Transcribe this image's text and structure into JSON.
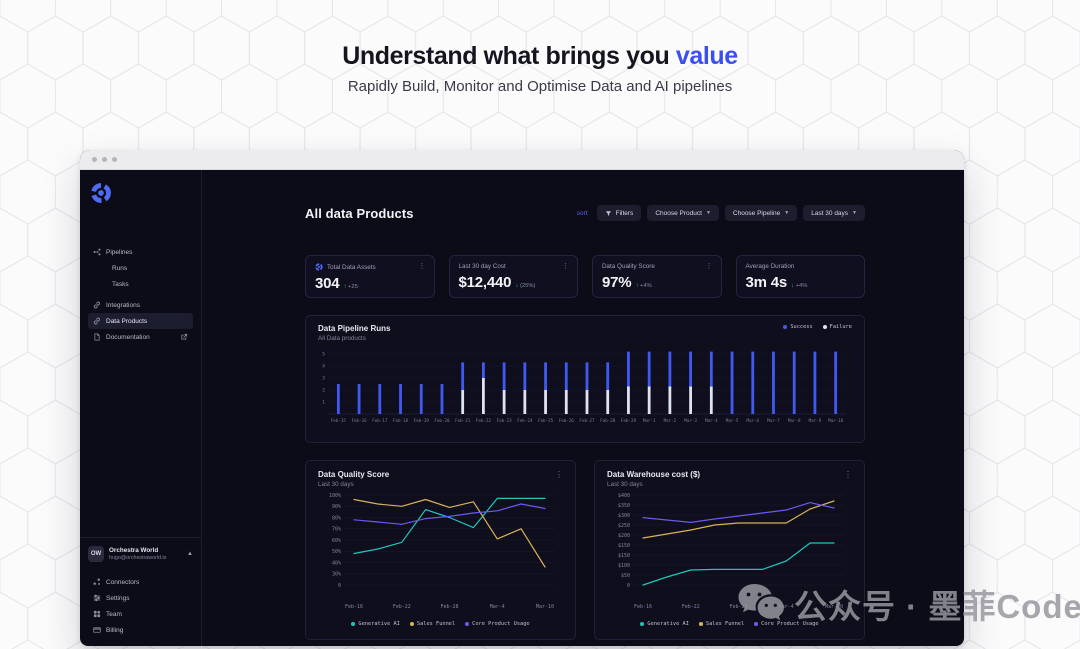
{
  "hero": {
    "title_prefix": "Understand what brings you ",
    "title_accent": "value",
    "subtitle": "Rapidly Build, Monitor and Optimise Data and AI pipelines"
  },
  "colors": {
    "accent_blue": "#3c4ef0",
    "success_bar": "#3f5af2",
    "failure_bar": "#dde3f0",
    "teal": "#1fc7b8",
    "gold": "#d9b357",
    "purple": "#6a5bf0",
    "green": "#2ecc71"
  },
  "sidebar": {
    "nav": [
      {
        "label": "Pipelines",
        "icon": "pipelines-icon",
        "indent": false,
        "selected": false
      },
      {
        "label": "Runs",
        "icon": null,
        "indent": true,
        "selected": false
      },
      {
        "label": "Tasks",
        "icon": null,
        "indent": true,
        "selected": false
      },
      {
        "label": "Integrations",
        "icon": "link-icon",
        "indent": false,
        "selected": false,
        "gap_before": true
      },
      {
        "label": "Data Products",
        "icon": "link-icon",
        "indent": false,
        "selected": true
      },
      {
        "label": "Documentation",
        "icon": "file-icon",
        "indent": false,
        "selected": false,
        "trailing": "external-link-icon"
      }
    ],
    "user": {
      "initials": "OW",
      "name": "Orchestra World",
      "email": "hugo@orchestraworld.io"
    },
    "bottom_nav": [
      {
        "label": "Connectors",
        "icon": "connectors-icon"
      },
      {
        "label": "Settings",
        "icon": "sliders-icon"
      },
      {
        "label": "Team",
        "icon": "team-icon"
      },
      {
        "label": "Billing",
        "icon": "billing-icon"
      }
    ]
  },
  "header": {
    "title": "All data Products",
    "sort_label": "sort",
    "filters_label": "Filters",
    "dropdowns": [
      "Choose Product",
      "Choose Pipeline",
      "Last 30 days"
    ]
  },
  "stats": [
    {
      "label": "Total Data Assets",
      "value": "304",
      "delta": "+25",
      "direction": "up",
      "icon": "logo-icon",
      "menu": true
    },
    {
      "label": "Last 30 day Cost",
      "value": "$12,440",
      "delta": "(25%)",
      "direction": "down",
      "icon": null,
      "menu": true
    },
    {
      "label": "Data Quality Score",
      "value": "97%",
      "delta": "+4%",
      "direction": "up",
      "icon": null,
      "menu": true
    },
    {
      "label": "Average Duration",
      "value": "3m 4s",
      "delta": "+4%",
      "direction": "down",
      "icon": null,
      "menu": false
    }
  ],
  "chart_data": [
    {
      "type": "bar",
      "stacked": true,
      "title": "Data Pipeline Runs",
      "subtitle": "All Data products",
      "legend_position": "top-right",
      "grid": true,
      "y_ticks": [
        1,
        2,
        3,
        4,
        5
      ],
      "ylim": [
        0,
        5.5
      ],
      "categories": [
        "Feb-15",
        "Feb-16",
        "Feb-17",
        "Feb-18",
        "Feb-19",
        "Feb-20",
        "Feb-21",
        "Feb-22",
        "Feb-23",
        "Feb-24",
        "Feb-25",
        "Feb-26",
        "Feb-27",
        "Feb-28",
        "Feb-29",
        "Mar-1",
        "Mar-2",
        "Mar-3",
        "Mar-4",
        "Mar-5",
        "Mar-6",
        "Mar-7",
        "Mar-8",
        "Mar-9",
        "Mar-10"
      ],
      "series": [
        {
          "name": "Failure",
          "color": "#dde3f0",
          "values": [
            0,
            0,
            0,
            0,
            0,
            0,
            2,
            3,
            2,
            2,
            2,
            2,
            2,
            2,
            2.3,
            2.3,
            2.3,
            2.3,
            2.3,
            0,
            0,
            0,
            0,
            0,
            0
          ]
        },
        {
          "name": "Success",
          "color": "#3f5af2",
          "values": [
            2.5,
            2.5,
            2.5,
            2.5,
            2.5,
            2.5,
            2.3,
            1.3,
            2.3,
            2.3,
            2.3,
            2.3,
            2.3,
            2.3,
            2.9,
            2.9,
            2.9,
            2.9,
            2.9,
            5.2,
            5.2,
            5.2,
            5.2,
            5.2,
            5.2
          ]
        }
      ],
      "legend": [
        {
          "label": "Success",
          "color": "#3f5af2"
        },
        {
          "label": "Failure",
          "color": "#dde3f0"
        }
      ]
    },
    {
      "type": "line",
      "title": "Data Quality Score",
      "subtitle": "Last 30 days",
      "grid": true,
      "menu": true,
      "x": [
        "Feb-16",
        "Feb-19",
        "Feb-22",
        "Feb-25",
        "Feb-28",
        "Mar-2",
        "Mar-5",
        "Mar-7",
        "Mar-10"
      ],
      "x_ticks": [
        "Feb-16",
        "Feb-22",
        "Feb-28",
        "Mar-4",
        "Mar-10"
      ],
      "y_tick_labels": [
        "100%",
        "90%",
        "80%",
        "70%",
        "60%",
        "50%",
        "40%",
        "30%",
        "0"
      ],
      "y_tick_values": [
        100,
        90,
        80,
        70,
        60,
        50,
        40,
        30,
        0
      ],
      "series": [
        {
          "name": "Generative AI",
          "color": "#1fc7b8",
          "values": [
            48,
            52,
            58,
            87,
            80,
            71,
            97,
            97,
            97
          ]
        },
        {
          "name": "Sales Funnel",
          "color": "#d9b357",
          "values": [
            96,
            92,
            90,
            96,
            89,
            94,
            61,
            70,
            36
          ]
        },
        {
          "name": "Core Product Usage",
          "color": "#6a5bf0",
          "values": [
            78,
            76,
            74,
            79,
            81,
            84,
            86,
            92,
            88
          ]
        }
      ],
      "legend_position": "bottom"
    },
    {
      "type": "line",
      "title": "Data Warehouse cost ($)",
      "subtitle": "Last 30 days",
      "grid": true,
      "menu": true,
      "x": [
        "Feb-16",
        "Feb-19",
        "Feb-22",
        "Feb-25",
        "Feb-28",
        "Mar-2",
        "Mar-5",
        "Mar-7",
        "Mar-10"
      ],
      "x_ticks": [
        "Feb-16",
        "Feb-22",
        "Feb-28",
        "Mar-4",
        "Mar-10"
      ],
      "y_tick_labels": [
        "$400",
        "$350",
        "$300",
        "$250",
        "$200",
        "$150",
        "$150",
        "$100",
        "$50",
        "0"
      ],
      "y_tick_values": [
        400,
        350,
        300,
        250,
        200,
        150,
        150,
        100,
        50,
        0
      ],
      "series": [
        {
          "name": "Generative AI",
          "color": "#1fc7b8",
          "values": [
            0,
            40,
            75,
            78,
            78,
            78,
            120,
            160,
            160
          ]
        },
        {
          "name": "Sales Funnel",
          "color": "#d9b357",
          "values": [
            185,
            205,
            225,
            250,
            260,
            260,
            260,
            330,
            370
          ]
        },
        {
          "name": "Core Product Usage",
          "color": "#6a5bf0",
          "values": [
            287,
            275,
            263,
            280,
            295,
            310,
            325,
            362,
            335
          ]
        }
      ],
      "legend_position": "bottom"
    }
  ],
  "watermark": {
    "text": "公众号 · 墨菲Code"
  }
}
